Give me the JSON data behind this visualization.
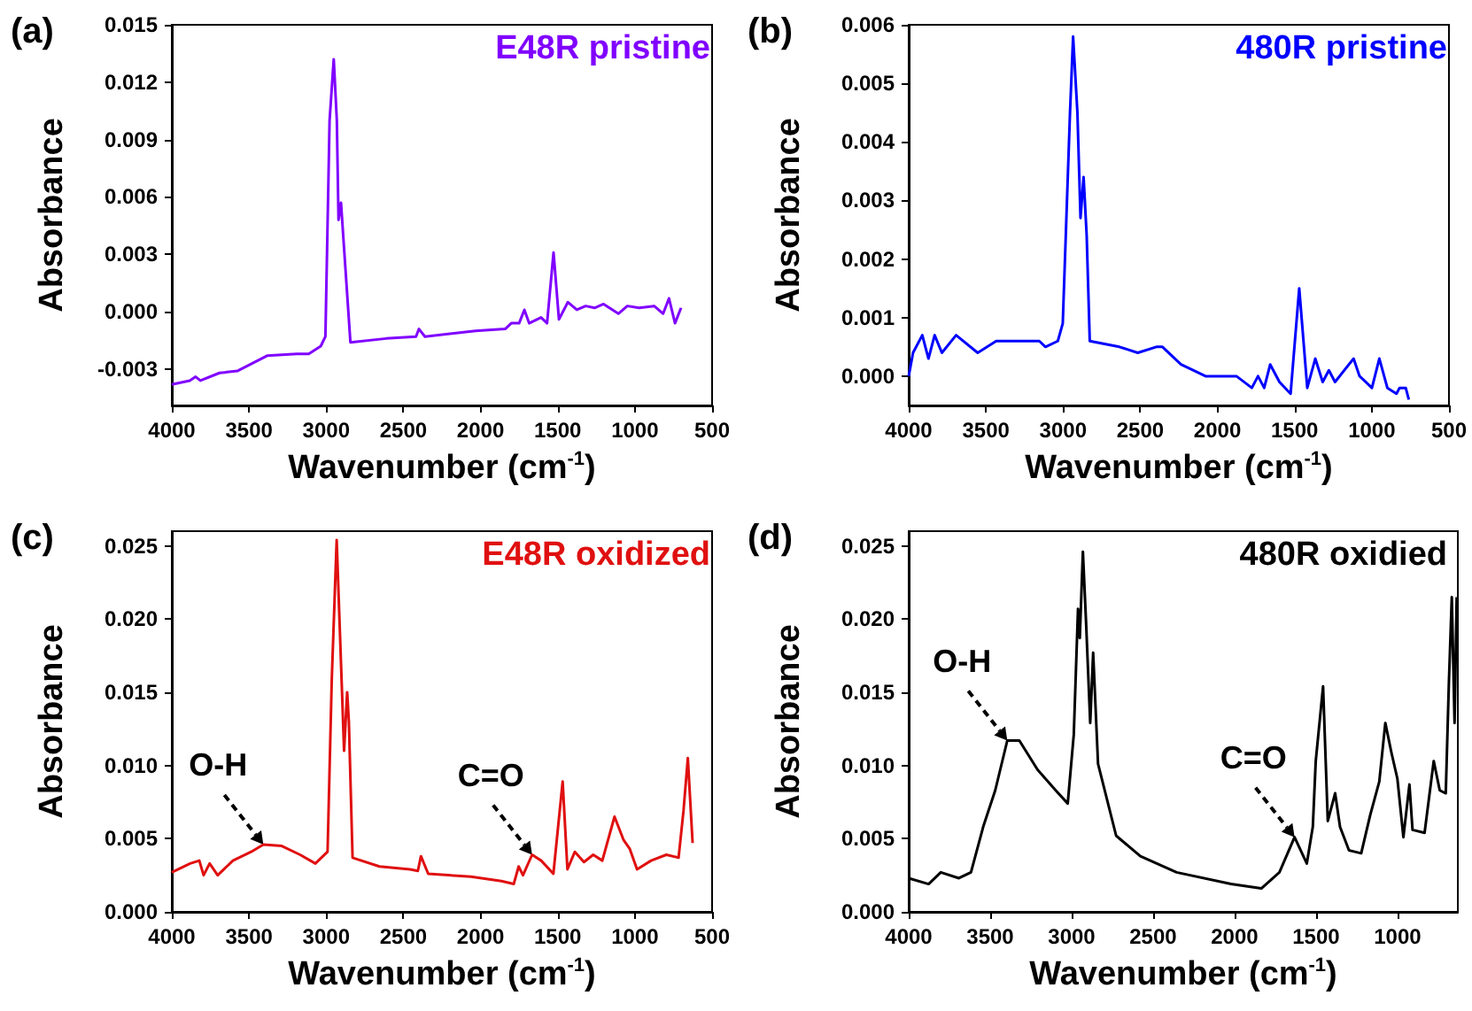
{
  "chart_data": [
    {
      "type": "line",
      "title": "(a)",
      "xlabel": "Wavenumber (cm$^{-1}$)",
      "ylabel": "Absorbance",
      "xlim": [
        4000,
        500
      ],
      "xticks": [
        4000,
        3500,
        3000,
        2500,
        2000,
        1500,
        1000,
        500
      ],
      "ylim": [
        -0.0049,
        0.015
      ],
      "yticks": [
        -0.003,
        {
          "value": 0,
          "label": "0.000"
        },
        0.003,
        0.006,
        0.009,
        0.012,
        0.015
      ],
      "series": [
        {
          "name": "E48R pristine",
          "color": "#8000ff",
          "x": [
            4000,
            3884,
            3846,
            3815,
            3691,
            3576,
            3383,
            3190,
            3113,
            3035,
            3005,
            2978,
            2951,
            2931,
            2920,
            2904,
            2889,
            2843,
            2611,
            2418,
            2399,
            2360,
            2032,
            1840,
            1801,
            1750,
            1716,
            1685,
            1608,
            1569,
            1527,
            1492,
            1434,
            1376,
            1319,
            1261,
            1203,
            1107,
            1049,
            972,
            875,
            817,
            779,
            740,
            701
          ],
          "values": [
            -0.0038,
            -0.0036,
            -0.0034,
            -0.0036,
            -0.0032,
            -0.0031,
            -0.0023,
            -0.0022,
            -0.0022,
            -0.0018,
            -0.0013,
            0.01,
            0.0132,
            0.01,
            0.0048,
            0.0057,
            0.0039,
            -0.0016,
            -0.0014,
            -0.0013,
            -0.0009,
            -0.0013,
            -0.001,
            -0.0009,
            -0.0006,
            -0.0006,
            0.0001,
            -0.0006,
            -0.0003,
            -0.0006,
            0.0031,
            -0.0004,
            0.0005,
            0.0001,
            0.0003,
            0.0002,
            0.0004,
            -0.0001,
            0.0003,
            0.0002,
            0.0003,
            -0.0001,
            0.0007,
            -0.0006,
            0.0002
          ]
        }
      ]
    },
    {
      "type": "line",
      "title": "(b)",
      "xlabel": "Wavenumber (cm$^{-1}$)",
      "ylabel": "Absorbance",
      "xlim": [
        4000,
        500
      ],
      "xticks": [
        4000,
        3500,
        3000,
        2500,
        2000,
        1500,
        1000,
        500
      ],
      "ylim": [
        -0.0005,
        0.006
      ],
      "yticks": [
        {
          "value": 0,
          "label": "0.000"
        },
        0.001,
        0.002,
        0.003,
        0.004,
        0.005,
        0.006
      ],
      "series": [
        {
          "name": "480R pristine",
          "color": "#0000ff",
          "x": [
            4000,
            3972,
            3912,
            3872,
            3832,
            3785,
            3693,
            3553,
            3433,
            3314,
            3154,
            3114,
            3034,
            3002,
            2955,
            2935,
            2907,
            2887,
            2867,
            2847,
            2827,
            2635,
            2516,
            2396,
            2356,
            2236,
            2077,
            1877,
            1777,
            1737,
            1697,
            1658,
            1598,
            1526,
            1470,
            1418,
            1366,
            1318,
            1278,
            1238,
            1118,
            1079,
            999,
            951,
            899,
            840,
            820,
            780,
            760
          ],
          "values": [
            0.0,
            0.0004,
            0.0007,
            0.0003,
            0.0007,
            0.0004,
            0.0007,
            0.0004,
            0.0006,
            0.0006,
            0.0006,
            0.0005,
            0.0006,
            0.0009,
            0.0045,
            0.0058,
            0.0045,
            0.0027,
            0.0034,
            0.0024,
            0.0006,
            0.0005,
            0.0004,
            0.0005,
            0.0005,
            0.0002,
            0.0,
            0.0,
            -0.0002,
            0.0,
            -0.0002,
            0.0002,
            -0.0001,
            -0.0003,
            0.0015,
            -0.0002,
            0.0003,
            -0.0001,
            0.0001,
            -0.0001,
            0.0003,
            0.0,
            -0.0002,
            0.0003,
            -0.0002,
            -0.0003,
            -0.0002,
            -0.0002,
            -0.0004
          ]
        }
      ]
    },
    {
      "type": "line",
      "title": "(c)",
      "xlabel": "Wavenumber (cm$^{-1}$)",
      "ylabel": "Absorbance",
      "xlim": [
        4000,
        500
      ],
      "xticks": [
        4000,
        3500,
        3000,
        2500,
        2000,
        1500,
        1000,
        500
      ],
      "ylim": [
        0,
        0.026
      ],
      "yticks": [
        {
          "value": 0,
          "label": "0.000"
        },
        0.005,
        {
          "value": 0.01,
          "label": "0.010"
        },
        0.015,
        {
          "value": 0.02,
          "label": "0.020"
        },
        0.025
      ],
      "annotations": [
        {
          "text": "O-H",
          "x": 3407,
          "y": 0.0046
        },
        {
          "text": "C=O",
          "x": 1666,
          "y": 0.0039
        }
      ],
      "series": [
        {
          "name": "E48R oxidized",
          "color": "#e01010",
          "x": [
            4000,
            3881,
            3822,
            3794,
            3755,
            3703,
            3604,
            3486,
            3407,
            3288,
            3169,
            3070,
            2991,
            2964,
            2932,
            2900,
            2884,
            2864,
            2853,
            2829,
            2655,
            2457,
            2406,
            2386,
            2339,
            2062,
            1864,
            1785,
            1753,
            1725,
            1666,
            1607,
            1528,
            1468,
            1437,
            1389,
            1330,
            1270,
            1211,
            1132,
            1073,
            1033,
            986,
            895,
            796,
            717,
            685,
            657,
            626
          ],
          "values": [
            0.0027,
            0.0033,
            0.0035,
            0.0025,
            0.0033,
            0.0025,
            0.0035,
            0.0041,
            0.0046,
            0.0045,
            0.0039,
            0.0033,
            0.0041,
            0.0158,
            0.0254,
            0.0158,
            0.011,
            0.015,
            0.013,
            0.0037,
            0.0031,
            0.0029,
            0.0028,
            0.0038,
            0.0026,
            0.0024,
            0.0021,
            0.0019,
            0.0031,
            0.0025,
            0.0039,
            0.0035,
            0.0026,
            0.0089,
            0.0029,
            0.0041,
            0.0034,
            0.0039,
            0.0035,
            0.0065,
            0.0049,
            0.0043,
            0.0029,
            0.0035,
            0.0039,
            0.0037,
            0.0069,
            0.0105,
            0.0047
          ]
        }
      ]
    },
    {
      "type": "line",
      "title": "(d)",
      "xlabel": "Wavenumber (cm$^{-1}$)",
      "ylabel": "Absorbance",
      "xlim": [
        4000,
        630
      ],
      "xticks": [
        4000,
        3500,
        3000,
        2500,
        2000,
        1500,
        1000
      ],
      "ylim": [
        0,
        0.026
      ],
      "yticks": [
        {
          "value": 0,
          "label": "0.000"
        },
        0.005,
        {
          "value": 0.01,
          "label": "0.010"
        },
        0.015,
        {
          "value": 0.02,
          "label": "0.020"
        },
        0.025
      ],
      "annotations": [
        {
          "text": "O-H",
          "x": 3395,
          "y": 0.0117
        },
        {
          "text": "C=O",
          "x": 1632,
          "y": 0.0051
        }
      ],
      "series": [
        {
          "name": "480R oxidied",
          "color": "#000000",
          "x": [
            4000,
            3878,
            3803,
            3692,
            3618,
            3543,
            3469,
            3395,
            3321,
            3209,
            3098,
            3024,
            2987,
            2961,
            2950,
            2931,
            2912,
            2886,
            2868,
            2838,
            2727,
            2578,
            2356,
            2022,
            1836,
            1725,
            1632,
            1557,
            1520,
            1502,
            1457,
            1428,
            1383,
            1353,
            1298,
            1223,
            1168,
            1112,
            1075,
            1038,
            1001,
            964,
            927,
            908,
            834,
            778,
            741,
            704,
            685,
            667,
            650,
            637
          ],
          "values": [
            0.0023,
            0.0019,
            0.0027,
            0.0023,
            0.0027,
            0.0058,
            0.0083,
            0.0117,
            0.0117,
            0.0097,
            0.0083,
            0.0074,
            0.0121,
            0.0207,
            0.0187,
            0.0246,
            0.0199,
            0.0129,
            0.0177,
            0.0101,
            0.0052,
            0.0038,
            0.0027,
            0.0019,
            0.0016,
            0.0027,
            0.0051,
            0.0033,
            0.0058,
            0.0103,
            0.0154,
            0.0062,
            0.0081,
            0.0058,
            0.0042,
            0.004,
            0.0066,
            0.0089,
            0.0129,
            0.0109,
            0.0091,
            0.0051,
            0.0087,
            0.0056,
            0.0054,
            0.0103,
            0.0083,
            0.0081,
            0.0156,
            0.0215,
            0.0129,
            0.0215
          ]
        }
      ]
    }
  ]
}
